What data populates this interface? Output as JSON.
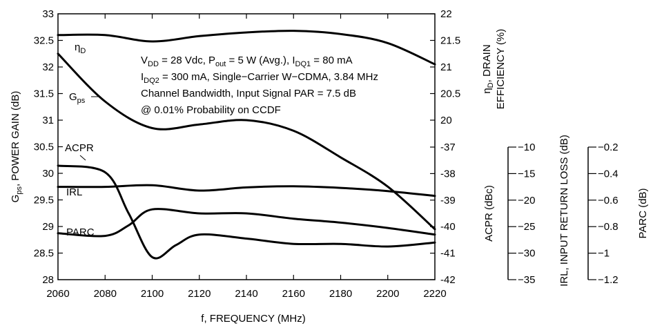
{
  "chart_data": {
    "type": "line",
    "x_axis": {
      "label": "f, FREQUENCY (MHz)",
      "range": [
        2060,
        2220
      ],
      "ticks": [
        "2060",
        "2080",
        "2100",
        "2120",
        "2140",
        "2160",
        "2180",
        "2200",
        "2220"
      ]
    },
    "y_axes": [
      {
        "id": "gps",
        "label_parts": [
          "G",
          "ps",
          ", POWER GAIN (dB)"
        ],
        "range": [
          28,
          33
        ],
        "ticks": [
          "33",
          "32.5",
          "32",
          "31.5",
          "31",
          "30.5",
          "30",
          "29.5",
          "29",
          "28.5",
          "28"
        ]
      },
      {
        "id": "eff",
        "label_line1": [
          "η",
          "D",
          ", DRAIN"
        ],
        "label_line2": "EFFICIENCY (%)",
        "range": [
          19,
          22
        ],
        "ticks": [
          "22",
          "21.5",
          "21",
          "20.5",
          "20"
        ]
      },
      {
        "id": "acpr",
        "label": "ACPR (dBc)",
        "range": [
          -42,
          -37
        ],
        "ticks": [
          "-37",
          "-38",
          "-39",
          "-40",
          "-41",
          "-42"
        ]
      },
      {
        "id": "irl",
        "label": "IRL, INPUT RETURN LOSS (dB)",
        "range": [
          -35,
          -10
        ],
        "ticks": [
          "−10",
          "−15",
          "−20",
          "−25",
          "−30",
          "−35"
        ]
      },
      {
        "id": "parc",
        "label": "PARC (dB)",
        "range": [
          -1.2,
          -0.2
        ],
        "ticks": [
          "−0.2",
          "−0.4",
          "−0.6",
          "−0.8",
          "−1",
          "−1.2"
        ]
      }
    ],
    "series": [
      {
        "name_parts": [
          "η",
          "D"
        ],
        "axis": "eff",
        "x": [
          2060,
          2080,
          2100,
          2120,
          2140,
          2160,
          2180,
          2200,
          2220
        ],
        "y": [
          21.6,
          21.6,
          21.48,
          21.58,
          21.65,
          21.68,
          21.62,
          21.45,
          21.05
        ]
      },
      {
        "name_parts": [
          "G",
          "ps"
        ],
        "axis": "gps",
        "x": [
          2060,
          2080,
          2100,
          2120,
          2140,
          2160,
          2180,
          2200,
          2220
        ],
        "y": [
          32.25,
          31.35,
          30.85,
          30.92,
          31.0,
          30.8,
          30.3,
          29.75,
          28.95
        ]
      },
      {
        "name": "ACPR",
        "axis": "acpr",
        "x": [
          2060,
          2080,
          2090,
          2100,
          2110,
          2120,
          2140,
          2160,
          2180,
          2200,
          2220
        ],
        "y": [
          -37.7,
          -37.95,
          -39.5,
          -41.15,
          -40.7,
          -40.3,
          -40.45,
          -40.65,
          -40.65,
          -40.75,
          -40.6
        ]
      },
      {
        "name": "IRL",
        "axis": "irl",
        "x": [
          2060,
          2080,
          2100,
          2120,
          2140,
          2160,
          2180,
          2200,
          2220
        ],
        "y": [
          -17.5,
          -17.5,
          -17.2,
          -18.2,
          -17.6,
          -17.4,
          -17.7,
          -18.3,
          -19.2
        ]
      },
      {
        "name": "PARC",
        "axis": "parc",
        "x": [
          2060,
          2080,
          2090,
          2100,
          2120,
          2140,
          2160,
          2180,
          2200,
          2220
        ],
        "y": [
          -0.85,
          -0.87,
          -0.79,
          -0.67,
          -0.7,
          -0.7,
          -0.74,
          -0.77,
          -0.81,
          -0.86
        ]
      }
    ],
    "annotation": [
      [
        {
          "t": "V"
        },
        {
          "t": "DD",
          "sub": true
        },
        {
          "t": " = 28 Vdc, P"
        },
        {
          "t": "out",
          "sub": true
        },
        {
          "t": " = 5 W (Avg.), I"
        },
        {
          "t": "DQ1",
          "sub": true
        },
        {
          "t": " = 80 mA"
        }
      ],
      [
        {
          "t": "I"
        },
        {
          "t": "DQ2",
          "sub": true
        },
        {
          "t": " = 300 mA, Single−Carrier W−CDMA, 3.84 MHz"
        }
      ],
      [
        {
          "t": "Channel Bandwidth, Input Signal PAR = 7.5 dB"
        }
      ],
      [
        {
          "t": "@ 0.01% Probability on CCDF"
        }
      ]
    ],
    "grid": false,
    "legend": "none"
  }
}
